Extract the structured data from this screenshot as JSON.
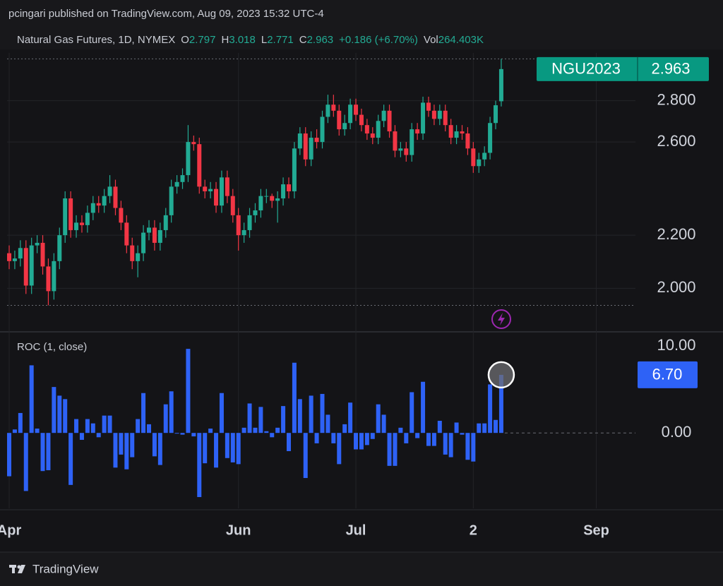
{
  "header": {
    "publisher": "pcingari published on TradingView.com, Aug 09, 2023 15:32 UTC-4",
    "symbol": "Natural Gas Futures, 1D, NYMEX",
    "ohlc_labels": [
      "O",
      "H",
      "L",
      "C"
    ],
    "change": "+0.186 (+6.70%)",
    "volume_label": "Vol",
    "volume": "264.403K"
  },
  "chart_data": [
    {
      "type": "candlestick",
      "name": "NGU2023",
      "open": [
        2.13,
        2.1,
        2.11,
        2.15,
        2.01,
        2.16,
        2.17,
        2.08,
        1.99,
        2.1,
        2.2,
        2.35,
        2.22,
        2.25,
        2.24,
        2.29,
        2.33,
        2.32,
        2.36,
        2.4,
        2.31,
        2.25,
        2.16,
        2.1,
        2.13,
        2.21,
        2.23,
        2.17,
        2.22,
        2.28,
        2.4,
        2.42,
        2.45,
        2.6,
        2.59,
        2.4,
        2.38,
        2.39,
        2.32,
        2.44,
        2.36,
        2.28,
        2.2,
        2.22,
        2.28,
        2.3,
        2.36,
        2.36,
        2.34,
        2.35,
        2.41,
        2.38,
        2.57,
        2.64,
        2.52,
        2.62,
        2.6,
        2.72,
        2.78,
        2.75,
        2.66,
        2.69,
        2.78,
        2.73,
        2.68,
        2.64,
        2.62,
        2.7,
        2.75,
        2.65,
        2.56,
        2.57,
        2.54,
        2.66,
        2.64,
        2.79,
        2.75,
        2.71,
        2.75,
        2.68,
        2.62,
        2.65,
        2.64,
        2.57,
        2.49,
        2.52,
        2.55,
        2.69,
        2.797
      ],
      "high": [
        2.16,
        2.14,
        2.18,
        2.18,
        2.19,
        2.2,
        2.2,
        2.11,
        2.13,
        2.23,
        2.38,
        2.38,
        2.28,
        2.28,
        2.32,
        2.36,
        2.36,
        2.39,
        2.45,
        2.43,
        2.34,
        2.28,
        2.19,
        2.16,
        2.24,
        2.26,
        2.26,
        2.25,
        2.31,
        2.43,
        2.45,
        2.48,
        2.68,
        2.63,
        2.62,
        2.43,
        2.42,
        2.42,
        2.47,
        2.47,
        2.39,
        2.31,
        2.25,
        2.31,
        2.33,
        2.39,
        2.39,
        2.37,
        2.38,
        2.44,
        2.44,
        2.6,
        2.67,
        2.67,
        2.65,
        2.66,
        2.75,
        2.83,
        2.83,
        2.78,
        2.73,
        2.81,
        2.81,
        2.76,
        2.71,
        2.67,
        2.73,
        2.78,
        2.78,
        2.68,
        2.6,
        2.6,
        2.69,
        2.69,
        2.82,
        2.82,
        2.78,
        2.78,
        2.78,
        2.71,
        2.68,
        2.68,
        2.67,
        2.6,
        2.55,
        2.58,
        2.72,
        2.8,
        3.018
      ],
      "low": [
        2.07,
        2.07,
        2.08,
        1.98,
        1.98,
        2.13,
        2.05,
        1.94,
        1.96,
        2.07,
        2.17,
        2.19,
        2.19,
        2.21,
        2.21,
        2.26,
        2.29,
        2.29,
        2.33,
        2.28,
        2.22,
        2.13,
        2.07,
        2.04,
        2.1,
        2.18,
        2.14,
        2.14,
        2.19,
        2.25,
        2.37,
        2.39,
        2.42,
        2.56,
        2.37,
        2.35,
        2.35,
        2.29,
        2.29,
        2.33,
        2.25,
        2.14,
        2.17,
        2.19,
        2.25,
        2.27,
        2.33,
        2.31,
        2.25,
        2.32,
        2.35,
        2.35,
        2.54,
        2.49,
        2.49,
        2.57,
        2.57,
        2.69,
        2.72,
        2.63,
        2.63,
        2.66,
        2.7,
        2.65,
        2.61,
        2.59,
        2.59,
        2.67,
        2.62,
        2.53,
        2.53,
        2.51,
        2.51,
        2.61,
        2.61,
        2.72,
        2.68,
        2.68,
        2.65,
        2.59,
        2.59,
        2.61,
        2.54,
        2.46,
        2.46,
        2.49,
        2.52,
        2.66,
        2.771
      ],
      "close": [
        2.1,
        2.11,
        2.15,
        2.01,
        2.16,
        2.17,
        2.08,
        1.99,
        2.1,
        2.2,
        2.35,
        2.22,
        2.25,
        2.24,
        2.29,
        2.33,
        2.32,
        2.36,
        2.4,
        2.31,
        2.25,
        2.16,
        2.1,
        2.13,
        2.21,
        2.23,
        2.17,
        2.22,
        2.28,
        2.4,
        2.42,
        2.45,
        2.6,
        2.59,
        2.4,
        2.38,
        2.39,
        2.32,
        2.44,
        2.36,
        2.28,
        2.2,
        2.22,
        2.28,
        2.3,
        2.36,
        2.36,
        2.34,
        2.35,
        2.41,
        2.38,
        2.57,
        2.64,
        2.52,
        2.62,
        2.6,
        2.72,
        2.78,
        2.75,
        2.66,
        2.69,
        2.78,
        2.73,
        2.68,
        2.64,
        2.62,
        2.7,
        2.75,
        2.65,
        2.56,
        2.57,
        2.54,
        2.66,
        2.64,
        2.79,
        2.75,
        2.71,
        2.75,
        2.68,
        2.62,
        2.65,
        2.64,
        2.57,
        2.49,
        2.52,
        2.55,
        2.69,
        2.777,
        2.963
      ],
      "up_color": "#22ab94",
      "down_color": "#f23645",
      "badge_color": "#089981",
      "ylim": [
        1.85,
        3.05
      ],
      "log_scale": true,
      "yticks": [
        {
          "value": 2.0,
          "label": "2.000"
        },
        {
          "value": 2.2,
          "label": "2.200"
        },
        {
          "value": 2.6,
          "label": "2.600"
        },
        {
          "value": 2.8,
          "label": "2.800"
        }
      ],
      "xlim": [
        -0.38,
        112
      ],
      "grid": true
    },
    {
      "type": "bar",
      "title": "ROC (1, close)",
      "values": [
        -5,
        0.4,
        2.3,
        -6.7,
        7.8,
        0.5,
        -4.4,
        -4.3,
        5.3,
        4.3,
        3.9,
        -6,
        1.6,
        -0.8,
        1.6,
        1.1,
        -0.5,
        2,
        2,
        -4,
        -2.5,
        -4.2,
        -2.8,
        1.6,
        4.6,
        1,
        -2.7,
        -3.7,
        3.3,
        4.8,
        0,
        -0.2,
        9.7,
        -0.4,
        -7.4,
        -3.5,
        0.5,
        -4,
        4.6,
        -2.9,
        -3.4,
        -3.6,
        0.6,
        3.4,
        0.6,
        3,
        0.2,
        -0.5,
        0.6,
        3.1,
        -2.1,
        8.1,
        3.9,
        -5.2,
        4.3,
        -1.2,
        4.5,
        2.1,
        -1.2,
        -3.6,
        1,
        3.5,
        -1.9,
        -1.9,
        -1.4,
        -0.7,
        3.3,
        2.1,
        -3.8,
        -3.8,
        0.6,
        -1.2,
        4.7,
        -0.6,
        5.9,
        -1.5,
        -1.5,
        1.4,
        -2.5,
        -2.8,
        1.2,
        -0.2,
        -3.1,
        -3.3,
        1.1,
        1.1,
        5.6,
        1.5,
        6.7
      ],
      "value_labels": [
        null,
        null,
        null,
        null,
        null,
        null,
        null,
        null,
        null,
        null,
        null,
        null,
        null,
        null,
        null,
        null,
        null,
        null,
        null,
        null,
        null,
        null,
        null,
        null,
        null,
        null,
        null,
        null,
        null,
        null,
        null,
        null,
        null,
        null,
        null,
        null,
        null,
        null,
        null,
        null,
        null,
        null,
        null,
        null,
        null,
        null,
        null,
        null,
        null,
        null,
        null,
        null,
        null,
        null,
        null,
        null,
        null,
        null,
        null,
        null,
        null,
        null,
        null,
        null,
        null,
        null,
        null,
        null,
        null,
        null,
        null,
        null,
        null,
        null,
        null,
        null,
        null,
        null,
        null,
        null,
        null,
        null,
        null,
        null,
        null,
        null,
        null,
        null,
        "6.70"
      ],
      "color": "#2e62f6",
      "ylim": [
        -8.7,
        11.5
      ],
      "yticks": [
        {
          "value": 10,
          "label": "10.00"
        },
        {
          "value": 0,
          "label": "0.00"
        }
      ],
      "xlim": [
        -0.38,
        112
      ],
      "xticks": [
        {
          "value": 0,
          "label": "Apr"
        },
        {
          "value": 41,
          "label": "Jun"
        },
        {
          "value": 62,
          "label": "Jul"
        },
        {
          "value": 83,
          "label": "2"
        },
        {
          "value": 105,
          "label": "Sep"
        }
      ],
      "grid": true
    }
  ],
  "footer": {
    "brand": "TradingView"
  }
}
